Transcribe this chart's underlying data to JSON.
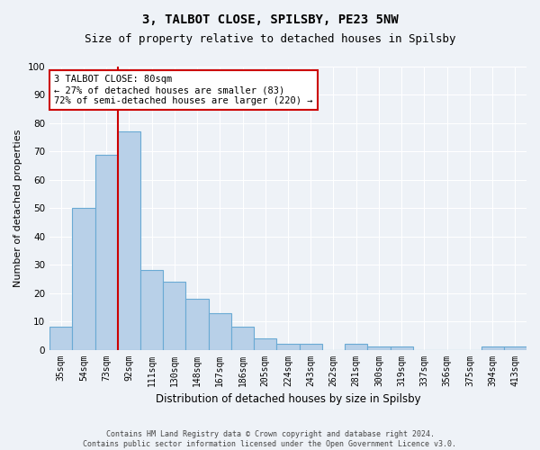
{
  "title_line1": "3, TALBOT CLOSE, SPILSBY, PE23 5NW",
  "title_line2": "Size of property relative to detached houses in Spilsby",
  "xlabel": "Distribution of detached houses by size in Spilsby",
  "ylabel": "Number of detached properties",
  "categories": [
    "35sqm",
    "54sqm",
    "73sqm",
    "92sqm",
    "111sqm",
    "130sqm",
    "148sqm",
    "167sqm",
    "186sqm",
    "205sqm",
    "224sqm",
    "243sqm",
    "262sqm",
    "281sqm",
    "300sqm",
    "319sqm",
    "337sqm",
    "356sqm",
    "375sqm",
    "394sqm",
    "413sqm"
  ],
  "values": [
    8,
    50,
    69,
    77,
    28,
    24,
    18,
    13,
    8,
    4,
    2,
    2,
    0,
    2,
    1,
    1,
    0,
    0,
    0,
    1,
    1
  ],
  "bar_color": "#b8d0e8",
  "bar_edge_color": "#6aaad4",
  "vline_x_index": 2.5,
  "vline_color": "#cc0000",
  "annotation_text": "3 TALBOT CLOSE: 80sqm\n← 27% of detached houses are smaller (83)\n72% of semi-detached houses are larger (220) →",
  "annotation_box_color": "#ffffff",
  "annotation_box_edge_color": "#cc0000",
  "ylim": [
    0,
    100
  ],
  "yticks": [
    0,
    10,
    20,
    30,
    40,
    50,
    60,
    70,
    80,
    90,
    100
  ],
  "footer_line1": "Contains HM Land Registry data © Crown copyright and database right 2024.",
  "footer_line2": "Contains public sector information licensed under the Open Government Licence v3.0.",
  "bg_color": "#eef2f7",
  "plot_bg_color": "#eef2f7",
  "grid_color": "#ffffff",
  "title1_fontsize": 10,
  "title2_fontsize": 9,
  "ylabel_fontsize": 8,
  "xlabel_fontsize": 8.5,
  "tick_fontsize": 7,
  "footer_fontsize": 6,
  "annotation_fontsize": 7.5
}
